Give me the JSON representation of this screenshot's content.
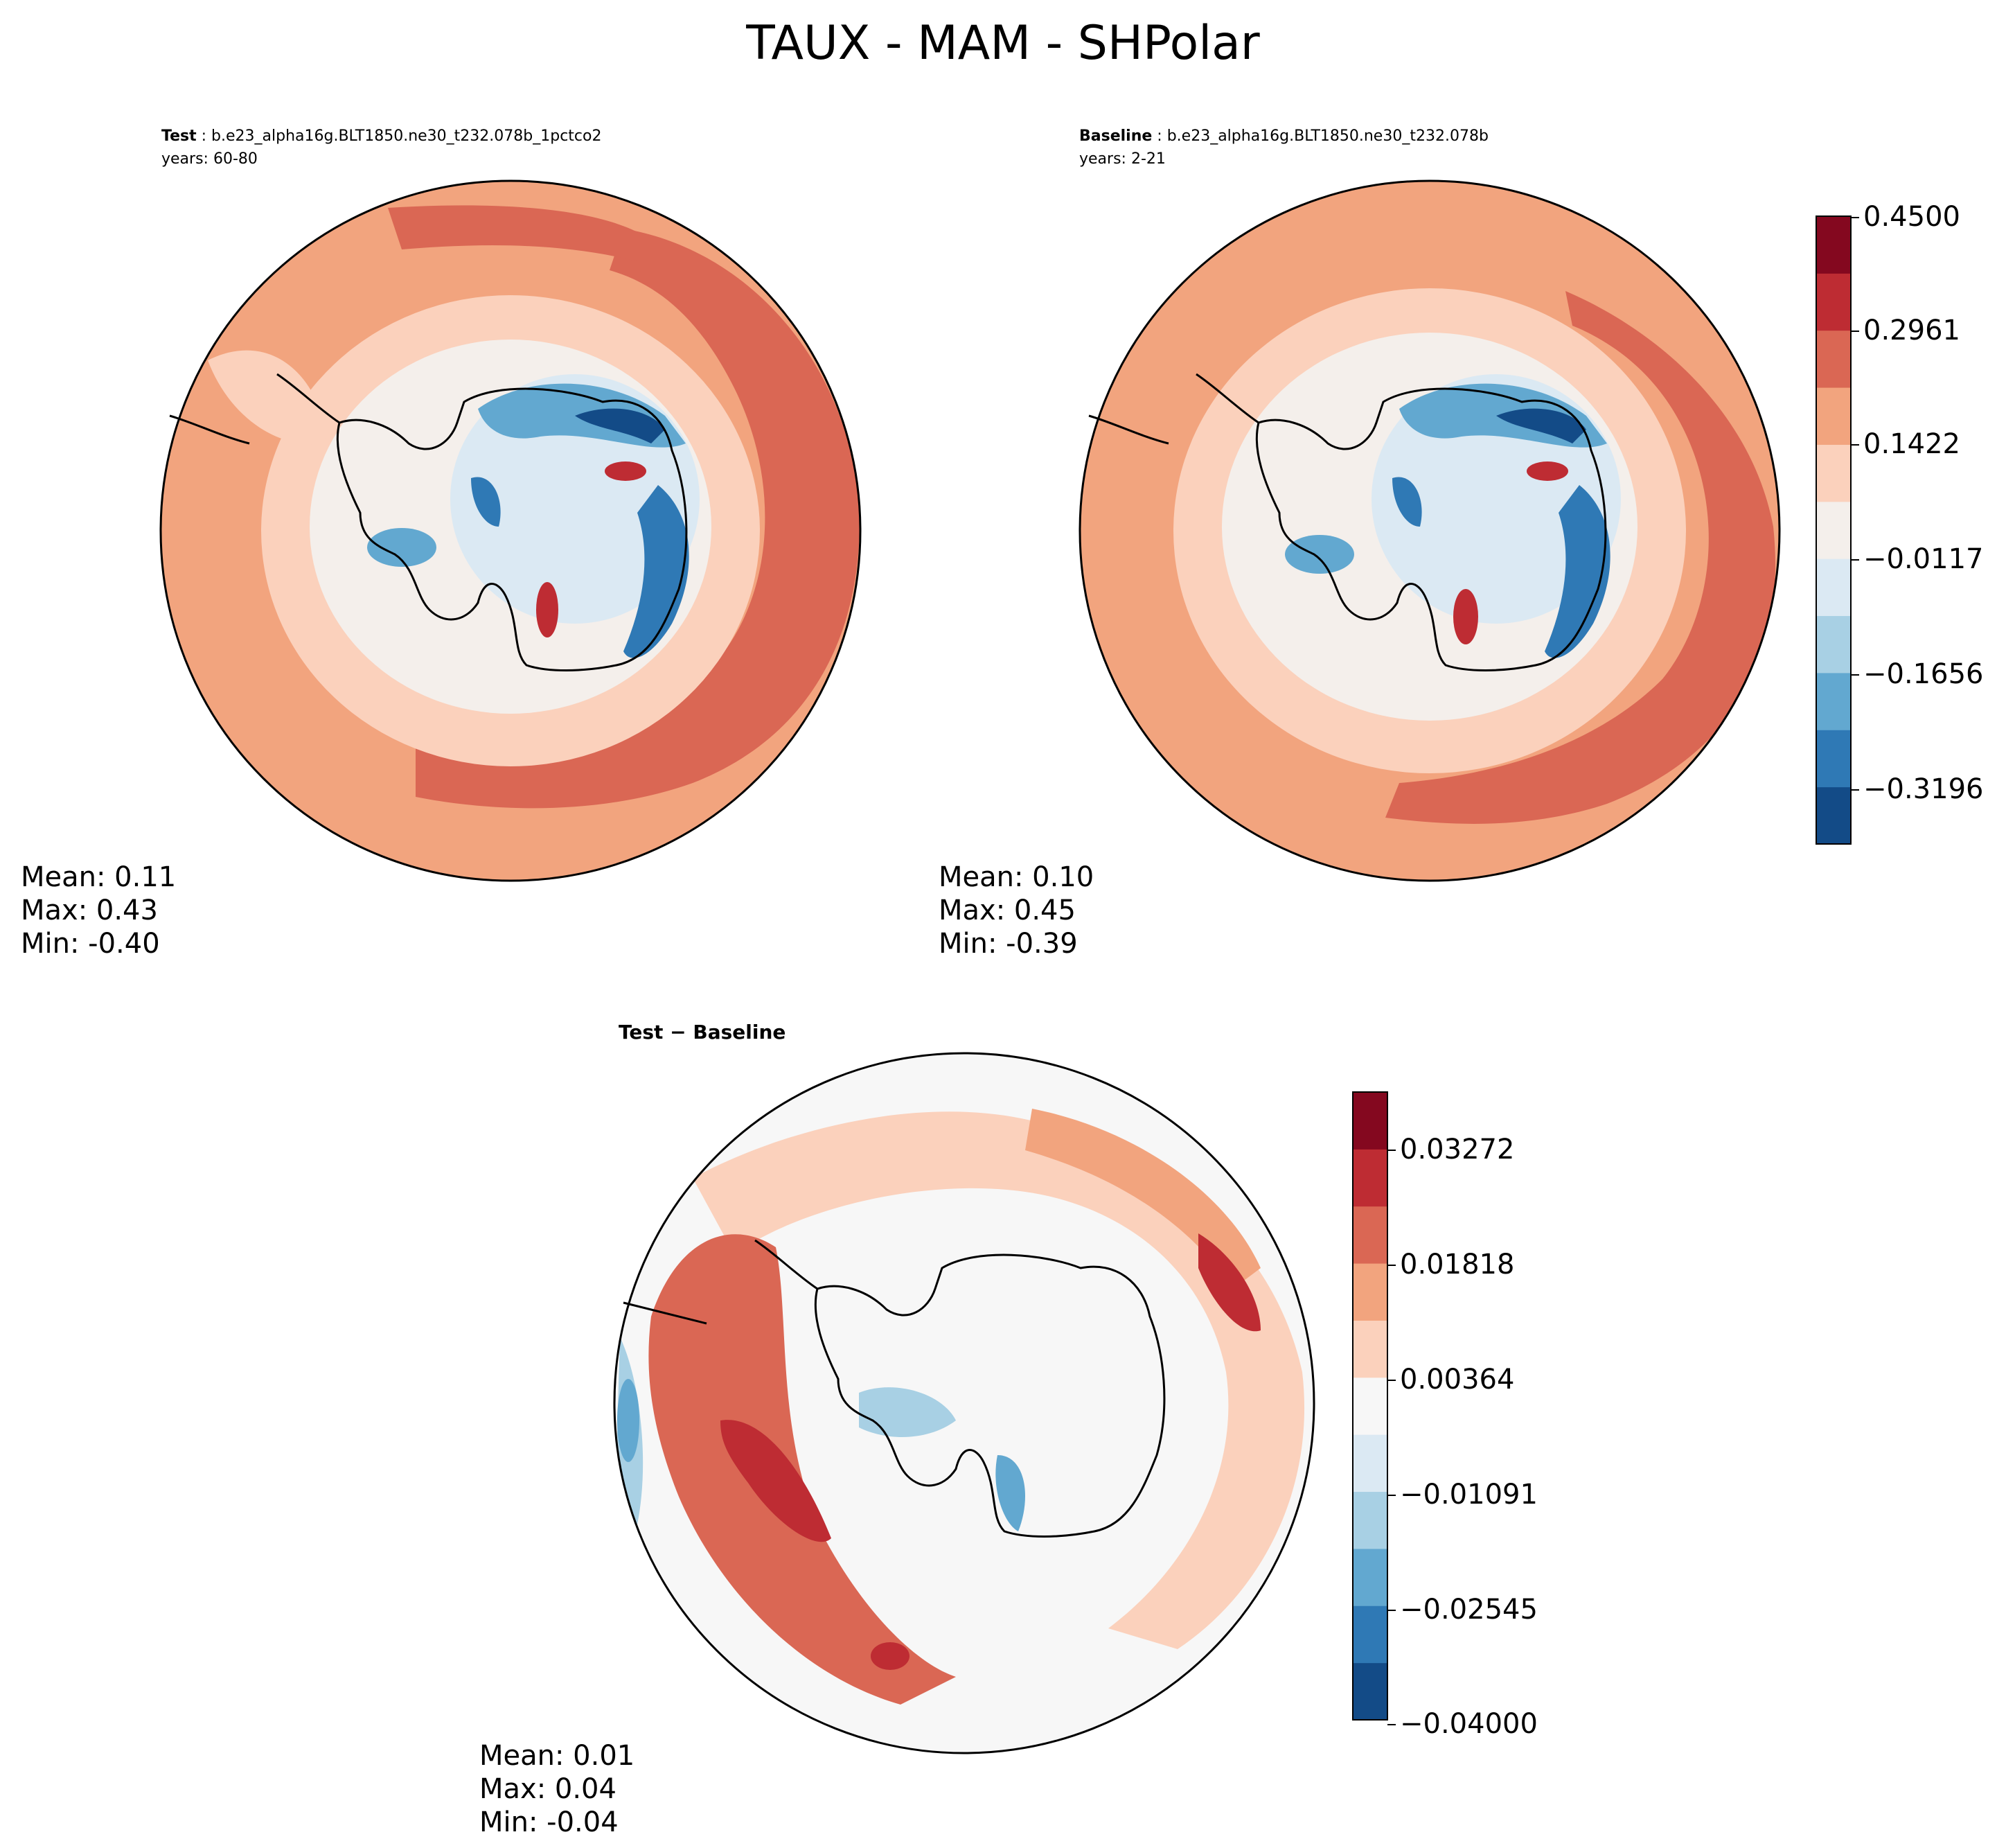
{
  "figure": {
    "title": "TAUX - MAM - SHPolar"
  },
  "panels": {
    "test": {
      "label": "Test",
      "case": "b.e23_alpha16g.BLT1850.ne30_t232.078b_1pctco2",
      "years": "years: 60-80",
      "stats": {
        "mean": "Mean:  0.11",
        "max": "Max:  0.43",
        "min": "Min: -0.40"
      }
    },
    "baseline": {
      "label": "Baseline",
      "case": "b.e23_alpha16g.BLT1850.ne30_t232.078b",
      "years": "years: 2-21",
      "stats": {
        "mean": "Mean:  0.10",
        "max": "Max:  0.45",
        "min": "Min: -0.39"
      }
    },
    "diff": {
      "label": "Test − Baseline",
      "stats": {
        "mean": "Mean:  0.01",
        "max": "Max:  0.04",
        "min": "Min: -0.04"
      }
    }
  },
  "colors": {
    "rdbu": [
      "#134b87",
      "#2f79b5",
      "#62a8d0",
      "#a8d0e4",
      "#dbe9f3",
      "#f4efeb",
      "#fbd1bc",
      "#f2a47e",
      "#da6754",
      "#be2c33",
      "#84081f"
    ],
    "diff_white": "#f7f7f7",
    "land_outline": "#000000"
  },
  "chart_data": [
    {
      "type": "heatmap",
      "name": "test",
      "projection": "south polar stereographic",
      "levels_min": -0.45,
      "levels_max": 0.45,
      "mean": 0.11,
      "max": 0.43,
      "min": -0.4
    },
    {
      "type": "heatmap",
      "name": "baseline",
      "projection": "south polar stereographic",
      "levels_min": -0.45,
      "levels_max": 0.45,
      "mean": 0.1,
      "max": 0.45,
      "min": -0.39,
      "colorbar_ticks": [
        "0.4500",
        "0.2961",
        "0.1422",
        "−0.0117",
        "−0.1656",
        "−0.3196"
      ]
    },
    {
      "type": "heatmap",
      "name": "diff",
      "projection": "south polar stereographic",
      "levels_min": -0.04,
      "levels_max": 0.04,
      "mean": 0.01,
      "max": 0.04,
      "min": -0.04,
      "colorbar_ticks": [
        "0.03272",
        "0.01818",
        "0.00364",
        "−0.01091",
        "−0.02545",
        "−0.04000"
      ]
    }
  ]
}
